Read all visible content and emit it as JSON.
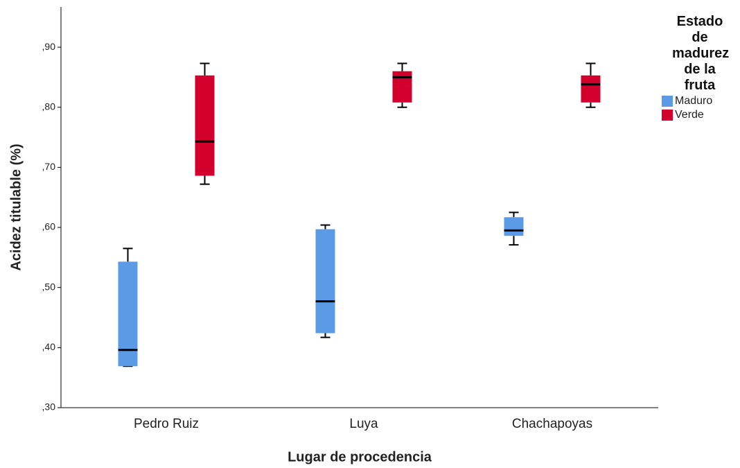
{
  "chart_data": {
    "type": "box",
    "x_label": "Lugar de procedencia",
    "y_label": "Acidez titulable (%)",
    "legend_title": "Estado de madurez de la fruta",
    "legend_position": "right",
    "categories": [
      "Pedro Ruiz",
      "Luya",
      "Chachapoyas"
    ],
    "ylim": [
      0.3,
      0.967
    ],
    "yticks": [
      {
        "value": 0.3,
        "label": ",30"
      },
      {
        "value": 0.4,
        "label": ",40"
      },
      {
        "value": 0.5,
        "label": ",50"
      },
      {
        "value": 0.6,
        "label": ",60"
      },
      {
        "value": 0.7,
        "label": ",70"
      },
      {
        "value": 0.8,
        "label": ",80"
      },
      {
        "value": 0.9,
        "label": ",90"
      }
    ],
    "series": [
      {
        "name": "Maduro",
        "color": "#5b9be6",
        "min": [
          0.369,
          0.417,
          0.571
        ],
        "q1": [
          0.369,
          0.424,
          0.586
        ],
        "median": [
          0.396,
          0.477,
          0.595
        ],
        "q3": [
          0.543,
          0.597,
          0.617
        ],
        "max": [
          0.565,
          0.604,
          0.625
        ]
      },
      {
        "name": "Verde",
        "color": "#d3002e",
        "min": [
          0.672,
          0.8,
          0.8
        ],
        "q1": [
          0.686,
          0.808,
          0.808
        ],
        "median": [
          0.743,
          0.85,
          0.838
        ],
        "q3": [
          0.853,
          0.86,
          0.853
        ],
        "max": [
          0.873,
          0.873,
          0.873
        ]
      }
    ]
  }
}
